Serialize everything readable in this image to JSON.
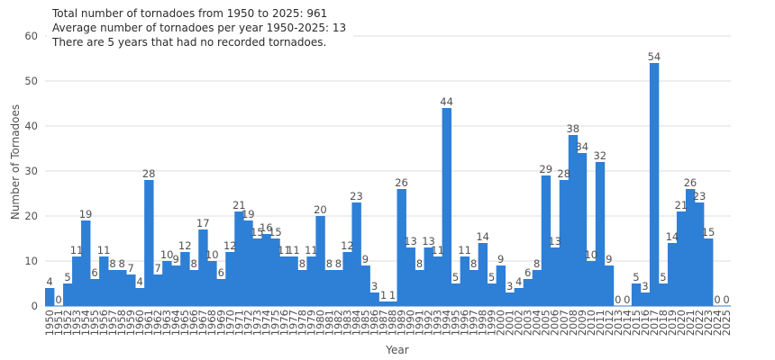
{
  "chart_data": {
    "type": "bar",
    "annotations": [
      "Total number of tornadoes from 1950 to 2025: 961",
      "Average number of tornadoes per year 1950-2025: 13",
      "There are 5 years that had no recorded tornadoes."
    ],
    "xlabel": "Year",
    "ylabel": "Number of Tornadoes",
    "ylim": [
      0,
      60
    ],
    "yticks": [
      0,
      10,
      20,
      30,
      40,
      50,
      60
    ],
    "grid": true,
    "legend": "none",
    "bar_color": "#2e7fd6",
    "categories": [
      "1950",
      "1951",
      "1952",
      "1953",
      "1954",
      "1955",
      "1956",
      "1957",
      "1958",
      "1959",
      "1960",
      "1961",
      "1962",
      "1963",
      "1964",
      "1965",
      "1966",
      "1967",
      "1968",
      "1969",
      "1970",
      "1971",
      "1972",
      "1973",
      "1974",
      "1975",
      "1976",
      "1977",
      "1978",
      "1979",
      "1980",
      "1981",
      "1982",
      "1983",
      "1984",
      "1985",
      "1986",
      "1987",
      "1988",
      "1989",
      "1990",
      "1991",
      "1992",
      "1993",
      "1994",
      "1995",
      "1996",
      "1997",
      "1998",
      "1999",
      "2000",
      "2001",
      "2002",
      "2003",
      "2004",
      "2005",
      "2006",
      "2007",
      "2008",
      "2009",
      "2010",
      "2011",
      "2012",
      "2013",
      "2014",
      "2015",
      "2016",
      "2017",
      "2018",
      "2019",
      "2020",
      "2021",
      "2022",
      "2023",
      "2024",
      "2025"
    ],
    "values": [
      4,
      0,
      5,
      11,
      19,
      6,
      11,
      8,
      8,
      7,
      4,
      28,
      7,
      10,
      9,
      12,
      8,
      17,
      10,
      6,
      12,
      21,
      19,
      15,
      16,
      15,
      11,
      11,
      8,
      11,
      20,
      8,
      8,
      12,
      23,
      9,
      3,
      1,
      1,
      26,
      13,
      8,
      13,
      11,
      44,
      5,
      11,
      8,
      14,
      5,
      9,
      3,
      4,
      6,
      8,
      29,
      13,
      28,
      38,
      34,
      10,
      32,
      9,
      0,
      0,
      5,
      3,
      54,
      5,
      14,
      21,
      26,
      23,
      15,
      0,
      0
    ]
  }
}
